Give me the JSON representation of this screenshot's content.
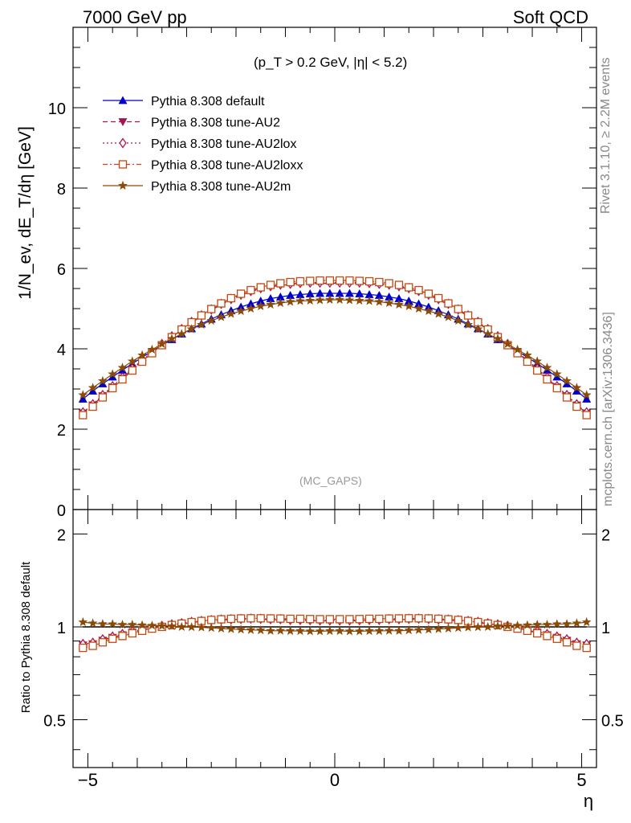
{
  "header": {
    "left": "7000 GeV pp",
    "right": "Soft QCD"
  },
  "cuts_label": "(p_T > 0.2 GeV, |η| < 5.2)",
  "analysis_tag": "(MC_GAPS)",
  "side_labels": {
    "rivet": "Rivet 3.1.10, ≥ 2.2M events",
    "mcplots": "mcplots.cern.ch [arXiv:1306.3436]"
  },
  "chart_data": [
    {
      "type": "line",
      "ylabel": "1/N_ev, dE_T/dη [GeV]",
      "xlabel": "η",
      "xlim": [
        -5.3,
        5.3
      ],
      "ylim": [
        0,
        12
      ],
      "y_ticks": [
        0,
        2,
        4,
        6,
        8,
        10
      ],
      "x": [
        -5.1,
        -4.9,
        -4.7,
        -4.5,
        -4.3,
        -4.1,
        -3.9,
        -3.7,
        -3.5,
        -3.3,
        -3.1,
        -2.9,
        -2.7,
        -2.5,
        -2.3,
        -2.1,
        -1.9,
        -1.7,
        -1.5,
        -1.3,
        -1.1,
        -0.9,
        -0.7,
        -0.5,
        -0.3,
        -0.1,
        0.1,
        0.3,
        0.5,
        0.7,
        0.9,
        1.1,
        1.3,
        1.5,
        1.7,
        1.9,
        2.1,
        2.3,
        2.5,
        2.7,
        2.9,
        3.1,
        3.3,
        3.5,
        3.7,
        3.9,
        4.1,
        4.3,
        4.5,
        4.7,
        4.9,
        5.1
      ],
      "series": [
        {
          "name": "Pythia 8.308 default",
          "color": "#0000cc",
          "marker": "triangle-up",
          "dash": "",
          "values": [
            2.75,
            2.95,
            3.13,
            3.3,
            3.47,
            3.63,
            3.79,
            3.94,
            4.09,
            4.23,
            4.37,
            4.5,
            4.62,
            4.74,
            4.85,
            4.95,
            5.04,
            5.12,
            5.19,
            5.25,
            5.29,
            5.33,
            5.35,
            5.37,
            5.38,
            5.38,
            5.38,
            5.38,
            5.37,
            5.35,
            5.33,
            5.29,
            5.25,
            5.19,
            5.12,
            5.04,
            4.95,
            4.85,
            4.74,
            4.62,
            4.5,
            4.37,
            4.23,
            4.09,
            3.94,
            3.79,
            3.63,
            3.47,
            3.3,
            3.13,
            2.95,
            2.75
          ]
        },
        {
          "name": "Pythia 8.308 tune-AU2",
          "color": "#a0154f",
          "marker": "triangle-down",
          "dash": "6,4",
          "values": [
            2.4,
            2.6,
            2.83,
            3.05,
            3.27,
            3.49,
            3.7,
            3.9,
            4.1,
            4.29,
            4.47,
            4.65,
            4.81,
            4.96,
            5.1,
            5.22,
            5.33,
            5.42,
            5.49,
            5.54,
            5.58,
            5.6,
            5.62,
            5.63,
            5.63,
            5.63,
            5.63,
            5.63,
            5.63,
            5.62,
            5.6,
            5.58,
            5.54,
            5.49,
            5.42,
            5.33,
            5.22,
            5.1,
            4.96,
            4.81,
            4.65,
            4.47,
            4.29,
            4.1,
            3.9,
            3.7,
            3.49,
            3.27,
            3.05,
            2.83,
            2.6,
            2.4
          ]
        },
        {
          "name": "Pythia 8.308 tune-AU2lox",
          "color": "#b0164d",
          "marker": "diamond",
          "dash": "2,3",
          "values": [
            2.42,
            2.62,
            2.85,
            3.07,
            3.29,
            3.51,
            3.72,
            3.92,
            4.12,
            4.31,
            4.49,
            4.67,
            4.83,
            4.98,
            5.12,
            5.24,
            5.35,
            5.44,
            5.51,
            5.56,
            5.6,
            5.62,
            5.64,
            5.65,
            5.65,
            5.65,
            5.65,
            5.65,
            5.65,
            5.64,
            5.62,
            5.6,
            5.56,
            5.51,
            5.44,
            5.35,
            5.24,
            5.12,
            4.98,
            4.83,
            4.67,
            4.49,
            4.31,
            4.12,
            3.92,
            3.72,
            3.51,
            3.29,
            3.07,
            2.85,
            2.62,
            2.42
          ]
        },
        {
          "name": "Pythia 8.308 tune-AU2loxx",
          "color": "#c04a12",
          "marker": "square",
          "dash": "6,3,2,3",
          "values": [
            2.35,
            2.56,
            2.79,
            3.02,
            3.24,
            3.46,
            3.68,
            3.89,
            4.09,
            4.29,
            4.48,
            4.66,
            4.83,
            4.99,
            5.13,
            5.26,
            5.37,
            5.46,
            5.53,
            5.59,
            5.63,
            5.66,
            5.68,
            5.69,
            5.7,
            5.7,
            5.7,
            5.7,
            5.69,
            5.68,
            5.66,
            5.63,
            5.59,
            5.53,
            5.46,
            5.37,
            5.26,
            5.13,
            4.99,
            4.83,
            4.66,
            4.48,
            4.29,
            4.09,
            3.89,
            3.68,
            3.46,
            3.24,
            3.02,
            2.79,
            2.56,
            2.35
          ]
        },
        {
          "name": "Pythia 8.308 tune-AU2m",
          "color": "#8b4a08",
          "marker": "star",
          "dash": "",
          "values": [
            2.85,
            3.03,
            3.2,
            3.37,
            3.53,
            3.69,
            3.84,
            3.98,
            4.12,
            4.25,
            4.37,
            4.49,
            4.6,
            4.7,
            4.79,
            4.87,
            4.94,
            5.0,
            5.06,
            5.1,
            5.14,
            5.17,
            5.19,
            5.2,
            5.21,
            5.22,
            5.22,
            5.21,
            5.2,
            5.19,
            5.17,
            5.14,
            5.1,
            5.06,
            5.0,
            4.94,
            4.87,
            4.79,
            4.7,
            4.6,
            4.49,
            4.37,
            4.25,
            4.12,
            3.98,
            3.84,
            3.69,
            3.53,
            3.37,
            3.2,
            3.03,
            2.85
          ]
        }
      ]
    },
    {
      "type": "line",
      "ylabel": "Ratio to Pythia 8.308 default",
      "xlabel": "η",
      "xlim": [
        -5.3,
        5.3
      ],
      "ylim": [
        0.35,
        2.4
      ],
      "y_scale": "log",
      "y_ticks": [
        0.5,
        1,
        2
      ],
      "x_ticks": [
        -5,
        0,
        5
      ],
      "x": [
        -5.1,
        -4.9,
        -4.7,
        -4.5,
        -4.3,
        -4.1,
        -3.9,
        -3.7,
        -3.5,
        -3.3,
        -3.1,
        -2.9,
        -2.7,
        -2.5,
        -2.3,
        -2.1,
        -1.9,
        -1.7,
        -1.5,
        -1.3,
        -1.1,
        -0.9,
        -0.7,
        -0.5,
        -0.3,
        -0.1,
        0.1,
        0.3,
        0.5,
        0.7,
        0.9,
        1.1,
        1.3,
        1.5,
        1.7,
        1.9,
        2.1,
        2.3,
        2.5,
        2.7,
        2.9,
        3.1,
        3.3,
        3.5,
        3.7,
        3.9,
        4.1,
        4.3,
        4.5,
        4.7,
        4.9,
        5.1
      ],
      "series": [
        {
          "name": "Pythia 8.308 default",
          "color": "#000000",
          "marker": "none",
          "dash": "",
          "values": [
            1,
            1,
            1,
            1,
            1,
            1,
            1,
            1,
            1,
            1,
            1,
            1,
            1,
            1,
            1,
            1,
            1,
            1,
            1,
            1,
            1,
            1,
            1,
            1,
            1,
            1,
            1,
            1,
            1,
            1,
            1,
            1,
            1,
            1,
            1,
            1,
            1,
            1,
            1,
            1,
            1,
            1,
            1,
            1,
            1,
            1,
            1,
            1,
            1,
            1,
            1,
            1
          ]
        },
        {
          "name": "Pythia 8.308 tune-AU2",
          "color": "#a0154f",
          "marker": "triangle-down",
          "dash": "6,4",
          "values": [
            0.873,
            0.881,
            0.904,
            0.924,
            0.942,
            0.961,
            0.976,
            0.99,
            1.002,
            1.014,
            1.023,
            1.033,
            1.041,
            1.046,
            1.052,
            1.055,
            1.058,
            1.059,
            1.058,
            1.055,
            1.055,
            1.051,
            1.05,
            1.048,
            1.046,
            1.046,
            1.046,
            1.046,
            1.048,
            1.05,
            1.051,
            1.055,
            1.055,
            1.058,
            1.059,
            1.058,
            1.055,
            1.052,
            1.046,
            1.041,
            1.033,
            1.023,
            1.014,
            1.002,
            0.99,
            0.976,
            0.961,
            0.942,
            0.924,
            0.904,
            0.881,
            0.873
          ]
        },
        {
          "name": "Pythia 8.308 tune-AU2lox",
          "color": "#b0164d",
          "marker": "diamond",
          "dash": "2,3",
          "values": [
            0.88,
            0.888,
            0.911,
            0.93,
            0.948,
            0.967,
            0.981,
            0.995,
            1.007,
            1.019,
            1.027,
            1.038,
            1.045,
            1.051,
            1.056,
            1.058,
            1.061,
            1.063,
            1.062,
            1.059,
            1.059,
            1.054,
            1.054,
            1.052,
            1.05,
            1.05,
            1.05,
            1.05,
            1.052,
            1.054,
            1.054,
            1.059,
            1.059,
            1.062,
            1.063,
            1.061,
            1.058,
            1.056,
            1.051,
            1.045,
            1.038,
            1.027,
            1.019,
            1.007,
            0.995,
            0.981,
            0.967,
            0.948,
            0.93,
            0.911,
            0.888,
            0.88
          ]
        },
        {
          "name": "Pythia 8.308 tune-AU2loxx",
          "color": "#c04a12",
          "marker": "square",
          "dash": "6,3,2,3",
          "values": [
            0.855,
            0.868,
            0.891,
            0.915,
            0.934,
            0.953,
            0.971,
            0.987,
            1.0,
            1.014,
            1.025,
            1.036,
            1.045,
            1.053,
            1.058,
            1.062,
            1.065,
            1.066,
            1.066,
            1.065,
            1.064,
            1.062,
            1.062,
            1.06,
            1.059,
            1.059,
            1.059,
            1.059,
            1.06,
            1.062,
            1.062,
            1.064,
            1.065,
            1.066,
            1.066,
            1.065,
            1.062,
            1.058,
            1.053,
            1.045,
            1.036,
            1.025,
            1.014,
            1.0,
            0.987,
            0.971,
            0.953,
            0.934,
            0.915,
            0.891,
            0.868,
            0.855
          ]
        },
        {
          "name": "Pythia 8.308 tune-AU2m",
          "color": "#8b4a08",
          "marker": "star",
          "dash": "",
          "values": [
            1.036,
            1.027,
            1.022,
            1.021,
            1.017,
            1.017,
            1.013,
            1.01,
            1.007,
            1.005,
            1.0,
            0.998,
            0.996,
            0.992,
            0.988,
            0.984,
            0.98,
            0.977,
            0.975,
            0.971,
            0.972,
            0.97,
            0.97,
            0.968,
            0.968,
            0.97,
            0.97,
            0.968,
            0.968,
            0.97,
            0.97,
            0.972,
            0.971,
            0.975,
            0.977,
            0.98,
            0.984,
            0.988,
            0.992,
            0.996,
            0.998,
            1.0,
            1.005,
            1.007,
            1.01,
            1.013,
            1.017,
            1.017,
            1.021,
            1.022,
            1.027,
            1.036
          ]
        }
      ]
    }
  ]
}
